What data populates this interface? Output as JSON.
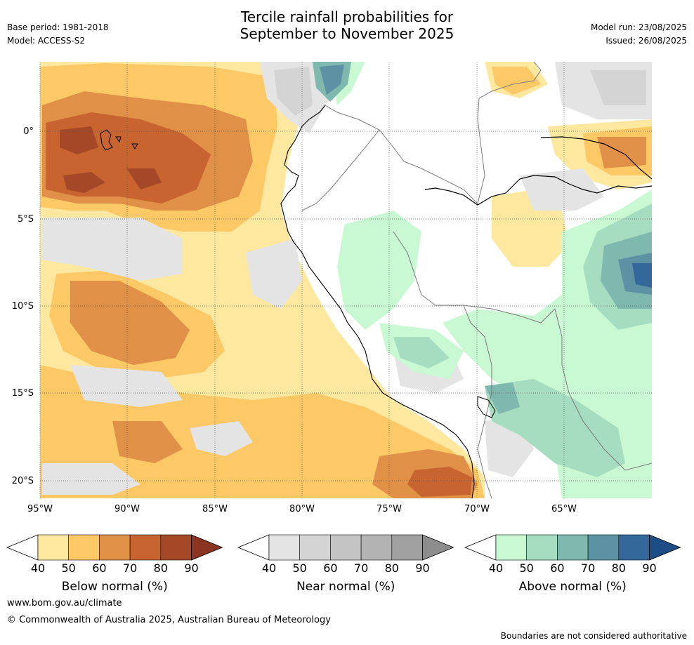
{
  "title": {
    "line1": "Tercile rainfall probabilities for",
    "line2": "September to November 2025"
  },
  "meta_left": {
    "base_period": "Base period: 1981-2018",
    "model": "Model: ACCESS-S2"
  },
  "meta_right": {
    "model_run": "Model run: 23/08/2025",
    "issued": "Issued: 26/08/2025"
  },
  "map": {
    "lat_labels": [
      "0°",
      "5°S",
      "10°S",
      "15°S",
      "20°S"
    ],
    "lon_labels": [
      "95°W",
      "90°W",
      "85°W",
      "80°W",
      "75°W",
      "70°W",
      "65°W"
    ]
  },
  "colorbars": [
    {
      "label": "Below normal (%)",
      "ticks": [
        "40",
        "50",
        "60",
        "70",
        "80",
        "90"
      ],
      "colors": [
        "#fee8a0",
        "#fdc966",
        "#e09047",
        "#c76430",
        "#a44828",
        "#8a3320"
      ]
    },
    {
      "label": "Near normal (%)",
      "ticks": [
        "40",
        "50",
        "60",
        "70",
        "80",
        "90"
      ],
      "colors": [
        "#e4e4e4",
        "#d4d4d4",
        "#c4c4c4",
        "#b3b3b3",
        "#a1a1a1",
        "#8c8c8c"
      ]
    },
    {
      "label": "Above normal (%)",
      "ticks": [
        "40",
        "50",
        "60",
        "70",
        "80",
        "90"
      ],
      "colors": [
        "#c9f9d2",
        "#a6dcbf",
        "#7fb8ae",
        "#5c92a3",
        "#34689a",
        "#1c4d85"
      ]
    }
  ],
  "footer": {
    "site": "www.bom.gov.au/climate",
    "copyright": "© Commonwealth of Australia 2025, Australian Bureau of Meteorology",
    "disclaimer": "Boundaries are not considered authoritative"
  }
}
